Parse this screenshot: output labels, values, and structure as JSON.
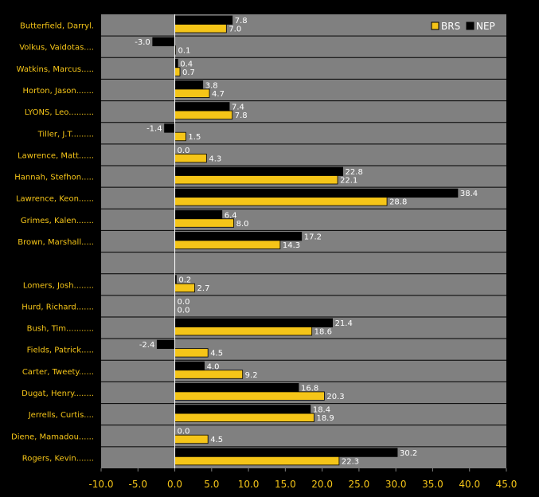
{
  "chart_data": {
    "type": "bar",
    "orientation": "horizontal",
    "categories": [
      "Butterfield, Darryl.",
      "Volkus, Vaidotas....",
      "Watkins, Marcus.....",
      "Horton, Jason.......",
      "LYONS, Leo..........",
      "Tiller, J.T.........",
      "Lawrence, Matt......",
      "Hannah, Stefhon.....",
      "Lawrence, Keon......",
      "Grimes, Kalen.......",
      "Brown, Marshall.....",
      "",
      "Lomers, Josh........",
      "Hurd, Richard.......",
      "Bush, Tim...........",
      "Fields, Patrick.....",
      "Carter, Tweety......",
      "Dugat, Henry........",
      "Jerrells, Curtis....",
      "Diene, Mamadou......",
      "Rogers, Kevin......."
    ],
    "series": [
      {
        "name": "NEP",
        "color": "#000000",
        "values": [
          7.8,
          -3.0,
          0.4,
          3.8,
          7.4,
          -1.4,
          0.0,
          22.8,
          38.4,
          6.4,
          17.2,
          null,
          0.2,
          0.0,
          21.4,
          -2.4,
          4.0,
          16.8,
          18.4,
          0.0,
          30.2
        ],
        "labels": [
          "7.8",
          "-3.0",
          "0.4",
          "3.8",
          "7.4",
          "-1.4",
          "0.0",
          "22.8",
          "38.4",
          "6.4",
          "17.2",
          "",
          "0.2",
          "0.0",
          "21.4",
          "-2.4",
          "4.0",
          "16.8",
          "18.4",
          "0.0",
          "30.2"
        ]
      },
      {
        "name": "BRS",
        "color": "#f5c518",
        "values": [
          7.0,
          0.1,
          0.7,
          4.7,
          7.8,
          1.5,
          4.3,
          22.1,
          28.8,
          8.0,
          14.3,
          null,
          2.7,
          0.0,
          18.6,
          4.5,
          9.2,
          20.3,
          18.9,
          4.5,
          22.3
        ],
        "labels": [
          "7.0",
          "0.1",
          "0.7",
          "4.7",
          "7.8",
          "1.5",
          "4.3",
          "22.1",
          "28.8",
          "8.0",
          "14.3",
          "",
          "2.7",
          "0.0",
          "18.6",
          "4.5",
          "9.2",
          "20.3",
          "18.9",
          "4.5",
          "22.3"
        ]
      }
    ],
    "xlim": [
      -10,
      45
    ],
    "x_ticks": [
      "-10.0",
      "-5.0",
      "0.0",
      "5.0",
      "10.0",
      "15.0",
      "20.0",
      "25.0",
      "30.0",
      "35.0",
      "40.0",
      "45.0"
    ],
    "title": "",
    "xlabel": "",
    "ylabel": "",
    "grid": "horizontal row separators",
    "legend": {
      "position": "top-right",
      "entries": [
        "BRS",
        "NEP"
      ]
    },
    "plot_background": "#808080"
  }
}
